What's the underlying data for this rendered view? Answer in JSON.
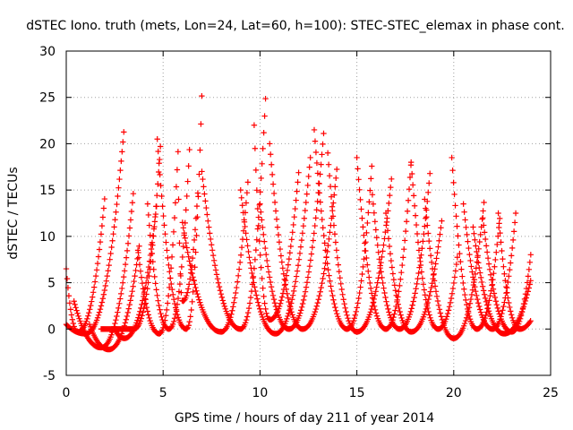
{
  "chart_data": {
    "type": "scatter",
    "title": "dSTEC Iono. truth (mets, Lon=24, Lat=60, h=100): STEC-STEC_elemax in phase cont.",
    "xlabel": "GPS time / hours of day 211 of year 2014",
    "ylabel": "dSTEC  / TECUs",
    "xlim": [
      0,
      25
    ],
    "ylim": [
      -5,
      30
    ],
    "x_ticks": [
      0,
      5,
      10,
      15,
      20,
      25
    ],
    "x_tick_labels": [
      "0",
      "5",
      "10",
      "15",
      "20",
      "25"
    ],
    "y_ticks": [
      -5,
      0,
      5,
      10,
      15,
      20,
      25,
      30
    ],
    "y_tick_labels": [
      "-5",
      "0",
      "5",
      "10",
      "15",
      "20",
      "25",
      "30"
    ],
    "grid": true,
    "legend": "none",
    "marker": "plus",
    "color": "#ff0000",
    "passes": [
      {
        "start": 0.0,
        "min_t": 0.6,
        "min_v": -0.3,
        "end": 2.0,
        "start_v": 6.5,
        "end_v": 14.5
      },
      {
        "start": 0.0,
        "min_t": 1.0,
        "min_v": -0.5,
        "end": 3.0,
        "start_v": 0.5,
        "end_v": 22.0
      },
      {
        "start": 0.4,
        "min_t": 1.8,
        "min_v": -2.0,
        "end": 3.5,
        "start_v": 3.0,
        "end_v": 15.5
      },
      {
        "start": 1.2,
        "min_t": 2.2,
        "min_v": -2.2,
        "end": 3.8,
        "start_v": 0.5,
        "end_v": 9.5
      },
      {
        "start": 1.8,
        "min_t": 3.5,
        "min_v": 0.0,
        "end": 4.9,
        "start_v": 0.0,
        "end_v": 21.0
      },
      {
        "start": 2.5,
        "min_t": 3.0,
        "min_v": -1.0,
        "end": 4.7,
        "start_v": 0.0,
        "end_v": 14.0
      },
      {
        "start": 3.7,
        "min_t": 4.8,
        "min_v": -0.5,
        "end": 5.8,
        "start_v": 8.5,
        "end_v": 20.5
      },
      {
        "start": 4.2,
        "min_t": 5.3,
        "min_v": 0.0,
        "end": 6.4,
        "start_v": 13.5,
        "end_v": 21.0
      },
      {
        "start": 4.7,
        "min_t": 6.2,
        "min_v": 0.0,
        "end": 7.0,
        "start_v": 20.5,
        "end_v": 25.5
      },
      {
        "start": 5.8,
        "min_t": 6.0,
        "min_v": 3.0,
        "end": 6.8,
        "start_v": 14.0,
        "end_v": 15.0
      },
      {
        "start": 6.0,
        "min_t": 8.0,
        "min_v": -0.3,
        "end": 9.4,
        "start_v": 11.5,
        "end_v": 16.5
      },
      {
        "start": 7.0,
        "min_t": 9.0,
        "min_v": 0.0,
        "end": 10.3,
        "start_v": 17.0,
        "end_v": 25.5
      },
      {
        "start": 9.0,
        "min_t": 10.8,
        "min_v": -0.5,
        "end": 12.6,
        "start_v": 15.0,
        "end_v": 18.5
      },
      {
        "start": 9.7,
        "min_t": 10.5,
        "min_v": 1.0,
        "end": 12.0,
        "start_v": 22.0,
        "end_v": 17.0
      },
      {
        "start": 10.0,
        "min_t": 11.5,
        "min_v": 0.0,
        "end": 13.3,
        "start_v": 13.5,
        "end_v": 21.5
      },
      {
        "start": 10.5,
        "min_t": 12.2,
        "min_v": 0.0,
        "end": 14.0,
        "start_v": 20.0,
        "end_v": 18.0
      },
      {
        "start": 12.8,
        "min_t": 14.5,
        "min_v": 0.0,
        "end": 15.8,
        "start_v": 21.5,
        "end_v": 18.5
      },
      {
        "start": 13.5,
        "min_t": 15.0,
        "min_v": -0.3,
        "end": 16.8,
        "start_v": 19.0,
        "end_v": 16.5
      },
      {
        "start": 15.0,
        "min_t": 16.5,
        "min_v": 0.0,
        "end": 17.8,
        "start_v": 18.5,
        "end_v": 18.0
      },
      {
        "start": 15.8,
        "min_t": 17.2,
        "min_v": 0.0,
        "end": 18.8,
        "start_v": 14.5,
        "end_v": 17.5
      },
      {
        "start": 16.5,
        "min_t": 17.8,
        "min_v": -0.3,
        "end": 19.4,
        "start_v": 12.5,
        "end_v": 12.0
      },
      {
        "start": 17.8,
        "min_t": 19.2,
        "min_v": 0.0,
        "end": 20.2,
        "start_v": 18.0,
        "end_v": 8.0
      },
      {
        "start": 18.5,
        "min_t": 20.0,
        "min_v": -1.0,
        "end": 21.6,
        "start_v": 14.0,
        "end_v": 14.5
      },
      {
        "start": 19.9,
        "min_t": 21.2,
        "min_v": 0.0,
        "end": 22.4,
        "start_v": 18.5,
        "end_v": 12.5
      },
      {
        "start": 20.5,
        "min_t": 22.0,
        "min_v": 0.0,
        "end": 23.2,
        "start_v": 13.5,
        "end_v": 12.5
      },
      {
        "start": 21.0,
        "min_t": 22.6,
        "min_v": -0.5,
        "end": 24.0,
        "start_v": 11.0,
        "end_v": 5.5
      },
      {
        "start": 21.5,
        "min_t": 23.0,
        "min_v": -0.3,
        "end": 24.0,
        "start_v": 12.0,
        "end_v": 8.5
      },
      {
        "start": 22.3,
        "min_t": 23.4,
        "min_v": 0.0,
        "end": 24.0,
        "start_v": 12.5,
        "end_v": 1.0
      }
    ]
  }
}
